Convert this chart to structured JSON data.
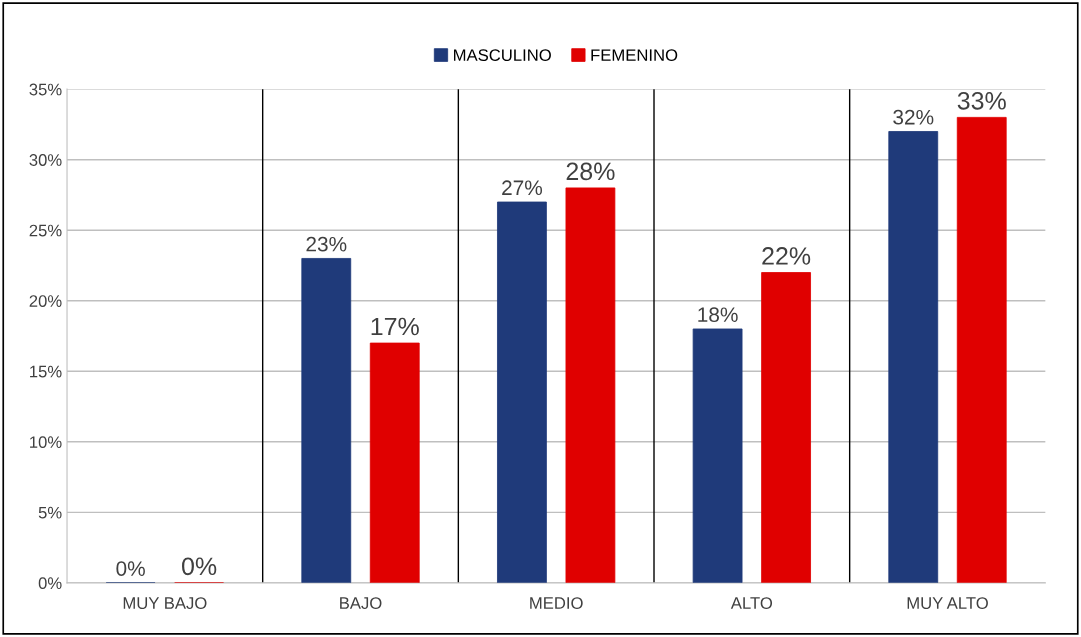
{
  "chart_data": {
    "type": "bar",
    "categories": [
      "MUY BAJO",
      "BAJO",
      "MEDIO",
      "ALTO",
      "MUY ALTO"
    ],
    "series": [
      {
        "name": "MASCULINO",
        "color": "#1f3a7a",
        "values": [
          0,
          23,
          27,
          18,
          32
        ],
        "value_labels": [
          "0%",
          "23%",
          "27%",
          "18%",
          "32%"
        ]
      },
      {
        "name": "FEMENINO",
        "color": "#e00000",
        "values": [
          0,
          17,
          28,
          22,
          33
        ],
        "value_labels": [
          "0%",
          "17%",
          "28%",
          "22%",
          "33%"
        ]
      }
    ],
    "ylim": [
      0,
      35
    ],
    "yticks": [
      {
        "value": 0,
        "label": "0%"
      },
      {
        "value": 5,
        "label": "5%"
      },
      {
        "value": 10,
        "label": "10%"
      },
      {
        "value": 15,
        "label": "15%"
      },
      {
        "value": 20,
        "label": "20%"
      },
      {
        "value": 25,
        "label": "25%"
      },
      {
        "value": 30,
        "label": "30%"
      },
      {
        "value": 35,
        "label": "35%"
      }
    ],
    "grid": true,
    "legend": "top"
  }
}
